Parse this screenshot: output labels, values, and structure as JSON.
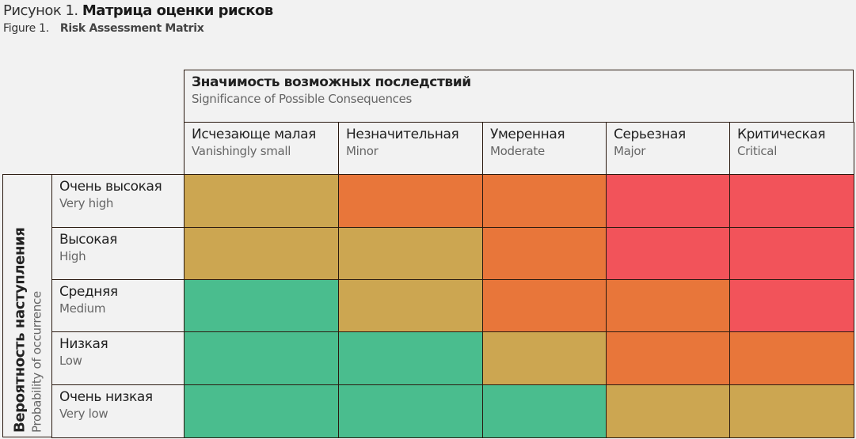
{
  "title": {
    "prefix_ru": "Рисунок 1.",
    "main_ru": "Матрица оценки рисков",
    "prefix_en": "Figure 1.",
    "main_en": "Risk Assessment Matrix"
  },
  "consequences": {
    "ru": "Значимость возможных последствий",
    "en": "Significance of Possible Consequences",
    "columns": [
      {
        "ru": "Исчезающе малая",
        "en": "Vanishingly small"
      },
      {
        "ru": "Незначительная",
        "en": "Minor"
      },
      {
        "ru": "Умеренная",
        "en": "Moderate"
      },
      {
        "ru": "Серьезная",
        "en": "Major"
      },
      {
        "ru": "Критическая",
        "en": "Critical"
      }
    ]
  },
  "probability": {
    "ru": "Вероятность наступления",
    "en": "Probability of occurrence",
    "rows": [
      {
        "ru": "Очень высокая",
        "en": "Very high"
      },
      {
        "ru": "Высокая",
        "en": "High"
      },
      {
        "ru": "Средняя",
        "en": "Medium"
      },
      {
        "ru": "Низкая",
        "en": "Low"
      },
      {
        "ru": "Очень низкая",
        "en": "Very low"
      }
    ]
  },
  "colors": {
    "green": "#4abd8e",
    "tan": "#cca651",
    "orange": "#e8763a",
    "red": "#f2535a"
  },
  "matrix": [
    [
      "tan",
      "orange",
      "orange",
      "red",
      "red"
    ],
    [
      "tan",
      "tan",
      "orange",
      "red",
      "red"
    ],
    [
      "green",
      "tan",
      "orange",
      "orange",
      "red"
    ],
    [
      "green",
      "green",
      "tan",
      "orange",
      "orange"
    ],
    [
      "green",
      "green",
      "green",
      "tan",
      "tan"
    ]
  ]
}
